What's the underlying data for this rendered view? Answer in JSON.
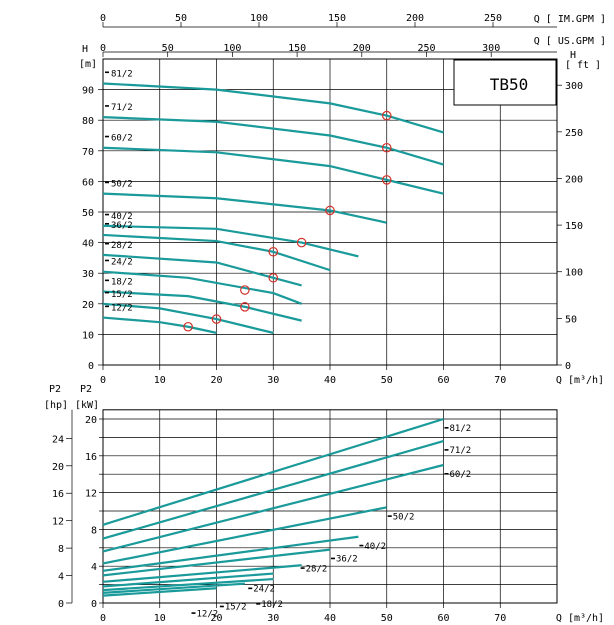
{
  "chart_data": [
    {
      "type": "line",
      "title": "TB50",
      "axes": {
        "top_im_gpm": {
          "label": "Q [ IM.GPM ]",
          "ticks": [
            "0",
            "50",
            "100",
            "150",
            "200",
            "250"
          ]
        },
        "top_us_gpm": {
          "label": "Q [ US.GPM ]",
          "ticks": [
            "0",
            "50",
            "100",
            "150",
            "200",
            "250",
            "300"
          ]
        },
        "x": {
          "label": "Q [m³/h]",
          "ticks": [
            "0",
            "10",
            "20",
            "30",
            "40",
            "50",
            "60",
            "70"
          ],
          "range": [
            0,
            80
          ]
        },
        "y_left": {
          "label_top": "H",
          "label_unit": "[m]",
          "ticks": [
            "0",
            "10",
            "20",
            "30",
            "40",
            "50",
            "60",
            "70",
            "80",
            "90"
          ],
          "range": [
            0,
            100
          ]
        },
        "y_right": {
          "label_top": "H",
          "label_unit": "[ ft ]",
          "ticks": [
            "0",
            "50",
            "100",
            "150",
            "200",
            "250",
            "300"
          ]
        }
      },
      "grid": true,
      "series": [
        {
          "name": "81/2",
          "x": [
            0,
            20,
            40,
            50,
            60
          ],
          "y": [
            92,
            90,
            85.5,
            81.5,
            76
          ],
          "marker": {
            "x": 50,
            "y": 81.5
          }
        },
        {
          "name": "71/2",
          "x": [
            0,
            20,
            40,
            50,
            60
          ],
          "y": [
            81,
            79.5,
            75,
            71,
            65.5
          ],
          "marker": {
            "x": 50,
            "y": 71
          }
        },
        {
          "name": "60/2",
          "x": [
            0,
            20,
            40,
            50,
            60
          ],
          "y": [
            71,
            69.5,
            65,
            60.5,
            56
          ],
          "marker": {
            "x": 50,
            "y": 60.5
          }
        },
        {
          "name": "50/2",
          "x": [
            0,
            20,
            40,
            50
          ],
          "y": [
            56,
            54.5,
            50.5,
            46.5
          ],
          "marker": {
            "x": 40,
            "y": 50.5
          }
        },
        {
          "name": "40/2",
          "x": [
            0,
            20,
            35,
            45
          ],
          "y": [
            45.5,
            44.5,
            40,
            35.5
          ],
          "marker": {
            "x": 35,
            "y": 40
          }
        },
        {
          "name": "36/2",
          "x": [
            0,
            20,
            30,
            40
          ],
          "y": [
            42.5,
            40.5,
            37,
            31
          ],
          "marker": {
            "x": 30,
            "y": 37
          }
        },
        {
          "name": "28/2",
          "x": [
            0,
            20,
            30,
            35
          ],
          "y": [
            36,
            33.5,
            28.5,
            26
          ],
          "marker": {
            "x": 30,
            "y": 28.5
          }
        },
        {
          "name": "24/2",
          "x": [
            0,
            15,
            30,
            35
          ],
          "y": [
            30.5,
            28.5,
            23.5,
            20
          ],
          "marker": {
            "x": 25,
            "y": 24.5
          }
        },
        {
          "name": "18/2",
          "x": [
            0,
            15,
            25,
            35
          ],
          "y": [
            24,
            22.5,
            19,
            14.5
          ],
          "marker": {
            "x": 25,
            "y": 19
          }
        },
        {
          "name": "15/2",
          "x": [
            0,
            10,
            20,
            30
          ],
          "y": [
            20,
            18.5,
            15,
            10.5
          ],
          "marker": {
            "x": 20,
            "y": 15
          }
        },
        {
          "name": "12/2",
          "x": [
            0,
            10,
            15,
            20
          ],
          "y": [
            15.5,
            14,
            12.5,
            10.5
          ],
          "marker": {
            "x": 15,
            "y": 12.5
          }
        }
      ]
    },
    {
      "type": "line",
      "axes": {
        "x": {
          "label": "Q [m³/h]",
          "ticks": [
            "0",
            "10",
            "20",
            "30",
            "40",
            "50",
            "60",
            "70"
          ],
          "range": [
            0,
            80
          ]
        },
        "y_left_kw": {
          "label_top": "P2",
          "label_unit": "[kW]",
          "ticks": [
            "0",
            "4",
            "8",
            "12",
            "16",
            "20"
          ],
          "range": [
            0,
            21
          ]
        },
        "y_left_hp": {
          "label_top": "P2",
          "label_unit": "[hp]",
          "ticks": [
            "0",
            "4",
            "8",
            "12",
            "16",
            "20",
            "24"
          ]
        }
      },
      "grid": true,
      "series": [
        {
          "name": "81/2",
          "x": [
            0,
            60
          ],
          "y": [
            8.5,
            20
          ]
        },
        {
          "name": "71/2",
          "x": [
            0,
            60
          ],
          "y": [
            7.0,
            17.6
          ]
        },
        {
          "name": "60/2",
          "x": [
            0,
            60
          ],
          "y": [
            5.6,
            15.0
          ]
        },
        {
          "name": "50/2",
          "x": [
            0,
            50
          ],
          "y": [
            4.3,
            10.4
          ]
        },
        {
          "name": "40/2",
          "x": [
            0,
            45
          ],
          "y": [
            3.5,
            7.2
          ]
        },
        {
          "name": "36/2",
          "x": [
            0,
            40
          ],
          "y": [
            3.0,
            5.8
          ]
        },
        {
          "name": "28/2",
          "x": [
            0,
            35
          ],
          "y": [
            2.3,
            4.1
          ]
        },
        {
          "name": "24/2",
          "x": [
            0,
            30
          ],
          "y": [
            1.8,
            3.2
          ]
        },
        {
          "name": "18/2",
          "x": [
            0,
            30
          ],
          "y": [
            1.4,
            2.6
          ]
        },
        {
          "name": "15/2",
          "x": [
            0,
            25
          ],
          "y": [
            1.1,
            2.1
          ]
        },
        {
          "name": "12/2",
          "x": [
            0,
            20
          ],
          "y": [
            0.8,
            1.6
          ]
        }
      ]
    }
  ]
}
